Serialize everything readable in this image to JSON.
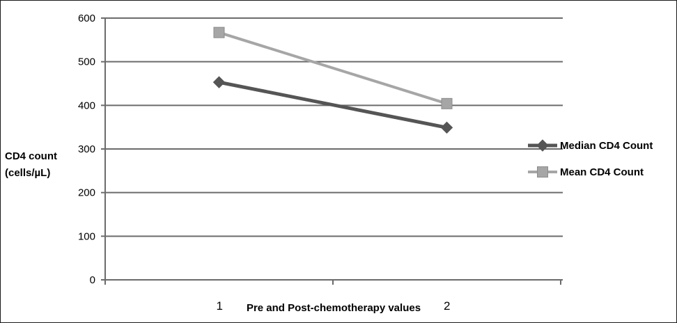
{
  "chart_data": {
    "type": "line",
    "categories": [
      "1",
      "2"
    ],
    "x": [
      1,
      2
    ],
    "series": [
      {
        "name": "Median CD4 Count",
        "values": [
          453,
          349
        ],
        "color": "#555555",
        "marker": "diamond"
      },
      {
        "name": "Mean CD4 Count",
        "values": [
          567,
          404
        ],
        "color": "#a6a6a6",
        "marker": "square"
      }
    ],
    "title": "",
    "xlabel": "Pre and Post-chemotherapy values",
    "ylabel_lines": [
      "CD4 count",
      "(cells/µL)"
    ],
    "ylim": [
      0,
      600
    ],
    "yticks": [
      0,
      100,
      200,
      300,
      400,
      500,
      600
    ],
    "grid": true,
    "legend_position": "right"
  }
}
